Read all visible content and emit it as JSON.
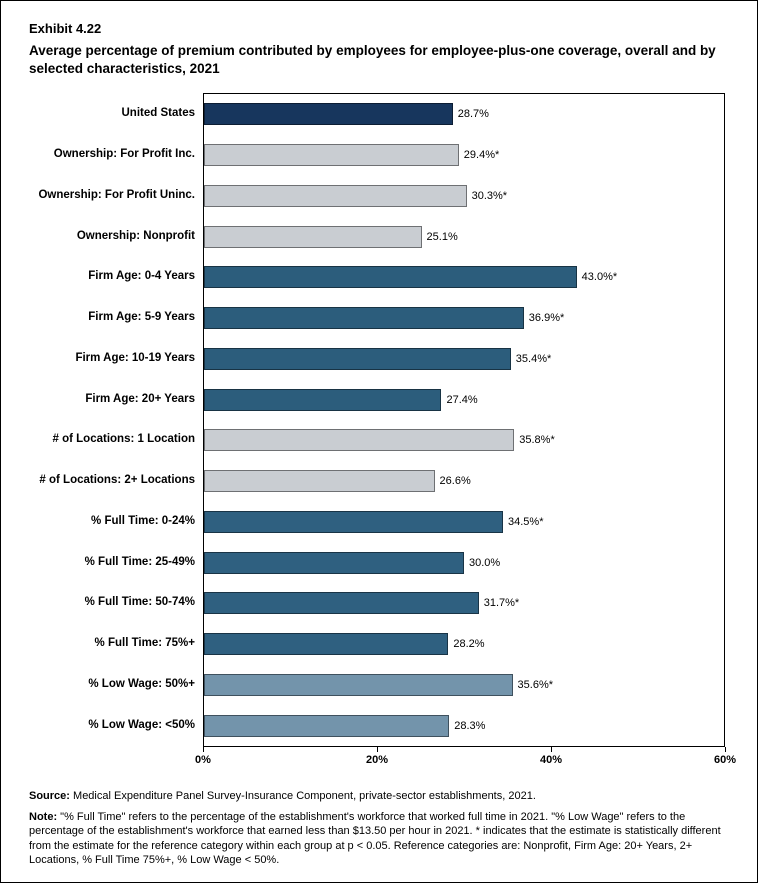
{
  "header": {
    "exhibit": "Exhibit 4.22",
    "title": "Average percentage of premium contributed by employees for employee-plus-one coverage, overall and by selected characteristics, 2021"
  },
  "chart_data": {
    "type": "bar",
    "orientation": "horizontal",
    "title": "Average percentage of premium contributed by employees for employee-plus-one coverage, overall and by selected characteristics, 2021",
    "xlabel": "",
    "ylabel": "",
    "xlim": [
      0,
      60
    ],
    "x_ticks": [
      "0%",
      "20%",
      "40%",
      "60%"
    ],
    "x_tick_values": [
      0,
      20,
      40,
      60
    ],
    "grid": false,
    "legend": "none",
    "categories": [
      "United States",
      "Ownership: For Profit Inc.",
      "Ownership: For Profit Uninc.",
      "Ownership: Nonprofit",
      "Firm Age: 0-4 Years",
      "Firm Age: 5-9 Years",
      "Firm Age: 10-19 Years",
      "Firm Age: 20+ Years",
      "# of Locations: 1 Location",
      "# of Locations: 2+ Locations",
      "% Full Time: 0-24%",
      "% Full Time: 25-49%",
      "% Full Time: 50-74%",
      "% Full Time: 75%+",
      "% Low Wage: 50%+",
      "% Low Wage: <50%"
    ],
    "values": [
      28.7,
      29.4,
      30.3,
      25.1,
      43.0,
      36.9,
      35.4,
      27.4,
      35.8,
      26.6,
      34.5,
      30.0,
      31.7,
      28.2,
      35.6,
      28.3
    ],
    "value_labels": [
      "28.7%",
      "29.4%*",
      "30.3%*",
      "25.1%",
      "43.0%*",
      "36.9%*",
      "35.4%*",
      "27.4%",
      "35.8%*",
      "26.6%",
      "34.5%*",
      "30.0%",
      "31.7%*",
      "28.2%",
      "35.6%*",
      "28.3%"
    ],
    "palette": {
      "navy": "#17365d",
      "gray": "#c9cdd2",
      "steel_dark": "#2c5d7c",
      "steel_mid": "#2f6080",
      "steel_light": "#7394ab"
    },
    "bar_color_keys": [
      "navy",
      "gray",
      "gray",
      "gray",
      "steel_dark",
      "steel_dark",
      "steel_dark",
      "steel_dark",
      "gray",
      "gray",
      "steel_mid",
      "steel_mid",
      "steel_mid",
      "steel_mid",
      "steel_light",
      "steel_light"
    ]
  },
  "footer": {
    "source_label": "Source:",
    "source_text": " Medical Expenditure Panel Survey-Insurance Component, private-sector establishments, 2021.",
    "note_label": "Note:",
    "note_text": " \"% Full Time\" refers to the percentage of the establishment's workforce that worked full time in 2021. \"% Low Wage\" refers to the percentage of the establishment's workforce that earned less than $13.50 per hour in 2021. * indicates that the estimate is statistically different from the estimate for the reference category within each group at p < 0.05.  Reference categories are: Nonprofit, Firm Age: 20+ Years, 2+ Locations, % Full Time 75%+, % Low Wage < 50%."
  }
}
